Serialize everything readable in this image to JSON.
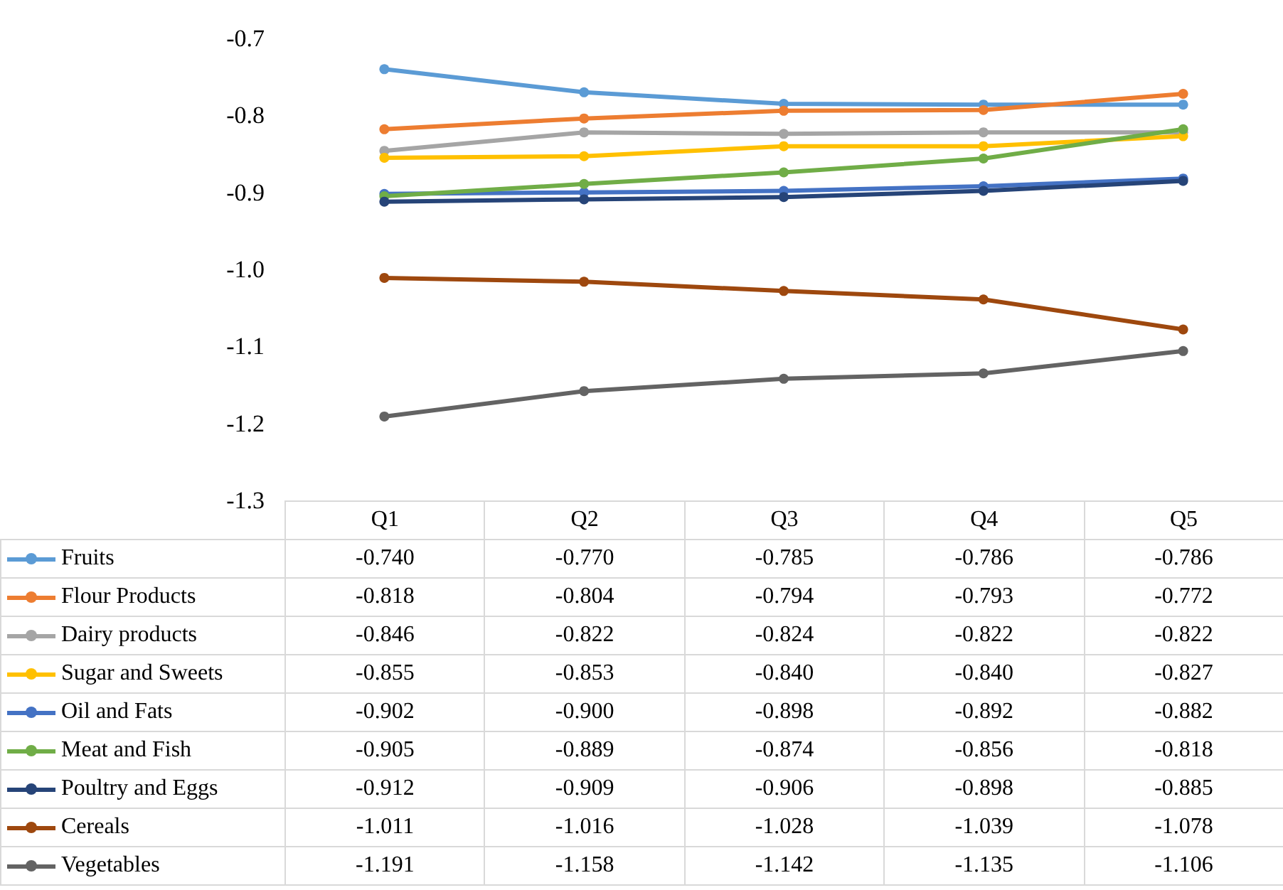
{
  "chart_data": {
    "type": "line",
    "categories": [
      "Q1",
      "Q2",
      "Q3",
      "Q4",
      "Q5"
    ],
    "ylim": [
      -1.3,
      -0.7
    ],
    "yticks": [
      -0.7,
      -0.8,
      -0.9,
      {
        "value": -1.0,
        "label": "-1.0"
      },
      -1.1,
      -1.2,
      -1.3
    ],
    "grid": false,
    "legend": "bottom",
    "marker": "circle",
    "series": [
      {
        "name": "Fruits",
        "color": "#5b9bd5",
        "values": [
          -0.74,
          -0.77,
          -0.785,
          -0.786,
          -0.786
        ],
        "value_labels": [
          "-0.740",
          "-0.770",
          "-0.785",
          "-0.786",
          "-0.786"
        ]
      },
      {
        "name": "Flour Products",
        "color": "#ed7d31",
        "values": [
          -0.818,
          -0.804,
          -0.794,
          -0.793,
          -0.772
        ],
        "value_labels": [
          "-0.818",
          "-0.804",
          "-0.794",
          "-0.793",
          "-0.772"
        ]
      },
      {
        "name": "Dairy products",
        "color": "#a5a5a5",
        "values": [
          -0.846,
          -0.822,
          -0.824,
          -0.822,
          -0.822
        ],
        "value_labels": [
          "-0.846",
          "-0.822",
          "-0.824",
          "-0.822",
          "-0.822"
        ]
      },
      {
        "name": "Sugar and Sweets",
        "color": "#ffc000",
        "values": [
          -0.855,
          -0.853,
          -0.84,
          -0.84,
          -0.827
        ],
        "value_labels": [
          "-0.855",
          "-0.853",
          "-0.840",
          "-0.840",
          "-0.827"
        ]
      },
      {
        "name": "Oil and Fats",
        "color": "#4472c4",
        "values": [
          -0.902,
          -0.9,
          -0.898,
          -0.892,
          -0.882
        ],
        "value_labels": [
          "-0.902",
          "-0.900",
          "-0.898",
          "-0.892",
          "-0.882"
        ]
      },
      {
        "name": "Meat and Fish",
        "color": "#70ad47",
        "values": [
          -0.905,
          -0.889,
          -0.874,
          -0.856,
          -0.818
        ],
        "value_labels": [
          "-0.905",
          "-0.889",
          "-0.874",
          "-0.856",
          "-0.818"
        ]
      },
      {
        "name": "Poultry and Eggs",
        "color": "#264478",
        "values": [
          -0.912,
          -0.909,
          -0.906,
          -0.898,
          -0.885
        ],
        "value_labels": [
          "-0.912",
          "-0.909",
          "-0.906",
          "-0.898",
          "-0.885"
        ]
      },
      {
        "name": "Cereals",
        "color": "#9e480e",
        "values": [
          -1.011,
          -1.016,
          -1.028,
          -1.039,
          -1.078
        ],
        "value_labels": [
          "-1.011",
          "-1.016",
          "-1.028",
          "-1.039",
          "-1.078"
        ]
      },
      {
        "name": "Vegetables",
        "color": "#636363",
        "values": [
          -1.191,
          -1.158,
          -1.142,
          -1.135,
          -1.106
        ],
        "value_labels": [
          "-1.191",
          "-1.158",
          "-1.142",
          "-1.135",
          "-1.106"
        ]
      }
    ]
  }
}
